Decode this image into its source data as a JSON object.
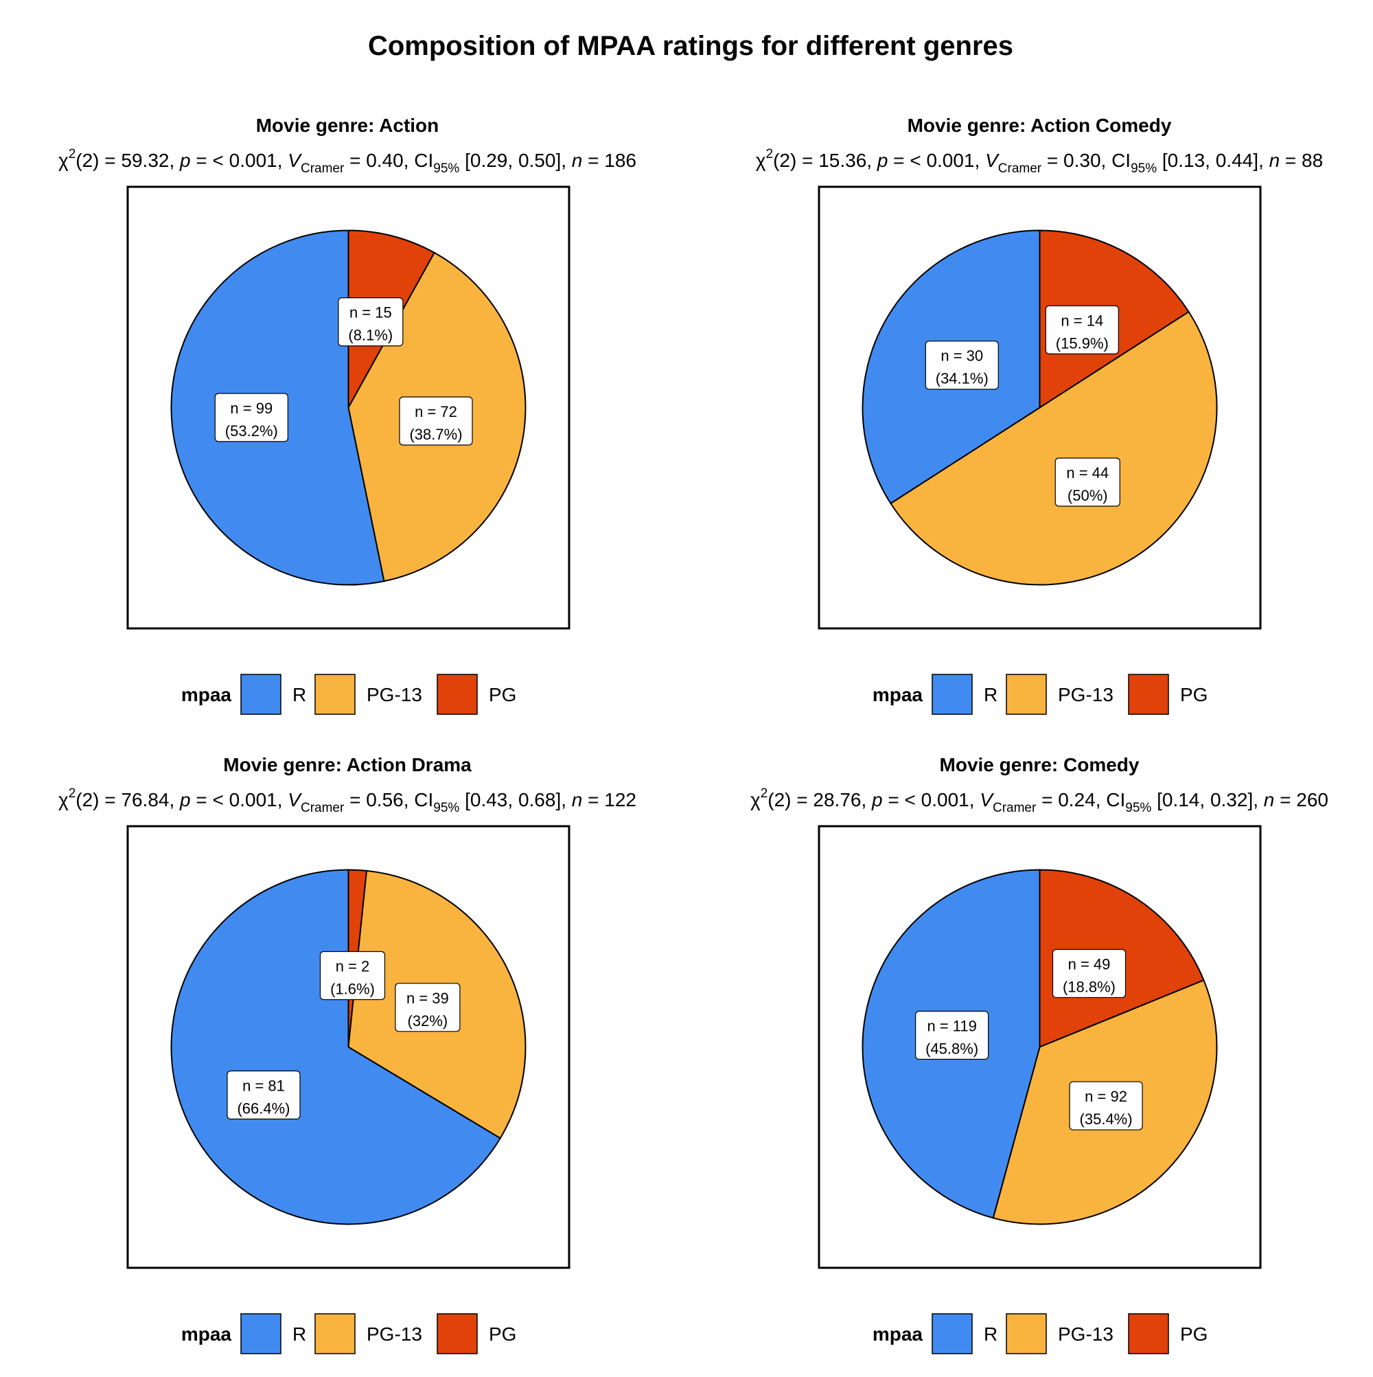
{
  "title": "Composition of MPAA ratings for different genres",
  "colors": {
    "R": "#418BF0",
    "PG-13": "#F9B33F",
    "PG": "#E0420A"
  },
  "legend": {
    "title": "mpaa",
    "labels": [
      "R",
      "PG-13",
      "PG"
    ]
  },
  "chart_data": [
    {
      "type": "pie",
      "title": "Movie genre: Action",
      "stats": {
        "chi": "χ",
        "sup": "2",
        "df_text": "(2) = 59.32, ",
        "p_label": "p",
        "p_text": " = < 0.001, ",
        "v_label": "V",
        "v_sub": "Cramer",
        "v_text": " = 0.40, CI",
        "ci_sub": "95%",
        "ci_text": " [0.29, 0.50], ",
        "n_label": "n",
        "n_text": " = 186"
      },
      "slices": [
        {
          "category": "PG",
          "n": 15,
          "percent": 8.1,
          "n_label": "n = 15",
          "pct_label": "(8.1%)"
        },
        {
          "category": "PG-13",
          "n": 72,
          "percent": 38.7,
          "n_label": "n = 72",
          "pct_label": "(38.7%)"
        },
        {
          "category": "R",
          "n": 99,
          "percent": 53.2,
          "n_label": "n = 99",
          "pct_label": "(53.2%)"
        }
      ]
    },
    {
      "type": "pie",
      "title": "Movie genre: Action Comedy",
      "stats": {
        "chi": "χ",
        "sup": "2",
        "df_text": "(2) = 15.36, ",
        "p_label": "p",
        "p_text": " = < 0.001, ",
        "v_label": "V",
        "v_sub": "Cramer",
        "v_text": " = 0.30, CI",
        "ci_sub": "95%",
        "ci_text": " [0.13, 0.44], ",
        "n_label": "n",
        "n_text": " = 88"
      },
      "slices": [
        {
          "category": "PG",
          "n": 14,
          "percent": 15.9,
          "n_label": "n = 14",
          "pct_label": "(15.9%)"
        },
        {
          "category": "PG-13",
          "n": 44,
          "percent": 50,
          "n_label": "n = 44",
          "pct_label": "(50%)"
        },
        {
          "category": "R",
          "n": 30,
          "percent": 34.1,
          "n_label": "n = 30",
          "pct_label": "(34.1%)"
        }
      ]
    },
    {
      "type": "pie",
      "title": "Movie genre: Action Drama",
      "stats": {
        "chi": "χ",
        "sup": "2",
        "df_text": "(2) = 76.84, ",
        "p_label": "p",
        "p_text": " = < 0.001, ",
        "v_label": "V",
        "v_sub": "Cramer",
        "v_text": " = 0.56, CI",
        "ci_sub": "95%",
        "ci_text": " [0.43, 0.68], ",
        "n_label": "n",
        "n_text": " = 122"
      },
      "slices": [
        {
          "category": "PG",
          "n": 2,
          "percent": 1.6,
          "n_label": "n = 2",
          "pct_label": "(1.6%)"
        },
        {
          "category": "PG-13",
          "n": 39,
          "percent": 32,
          "n_label": "n = 39",
          "pct_label": "(32%)"
        },
        {
          "category": "R",
          "n": 81,
          "percent": 66.4,
          "n_label": "n = 81",
          "pct_label": "(66.4%)"
        }
      ]
    },
    {
      "type": "pie",
      "title": "Movie genre: Comedy",
      "stats": {
        "chi": "χ",
        "sup": "2",
        "df_text": "(2) = 28.76, ",
        "p_label": "p",
        "p_text": " = < 0.001, ",
        "v_label": "V",
        "v_sub": "Cramer",
        "v_text": " = 0.24, CI",
        "ci_sub": "95%",
        "ci_text": " [0.14, 0.32], ",
        "n_label": "n",
        "n_text": " = 260"
      },
      "slices": [
        {
          "category": "PG",
          "n": 49,
          "percent": 18.8,
          "n_label": "n = 49",
          "pct_label": "(18.8%)"
        },
        {
          "category": "PG-13",
          "n": 92,
          "percent": 35.4,
          "n_label": "n = 92",
          "pct_label": "(35.4%)"
        },
        {
          "category": "R",
          "n": 119,
          "percent": 45.8,
          "n_label": "n = 119",
          "pct_label": "(45.8%)"
        }
      ]
    }
  ]
}
